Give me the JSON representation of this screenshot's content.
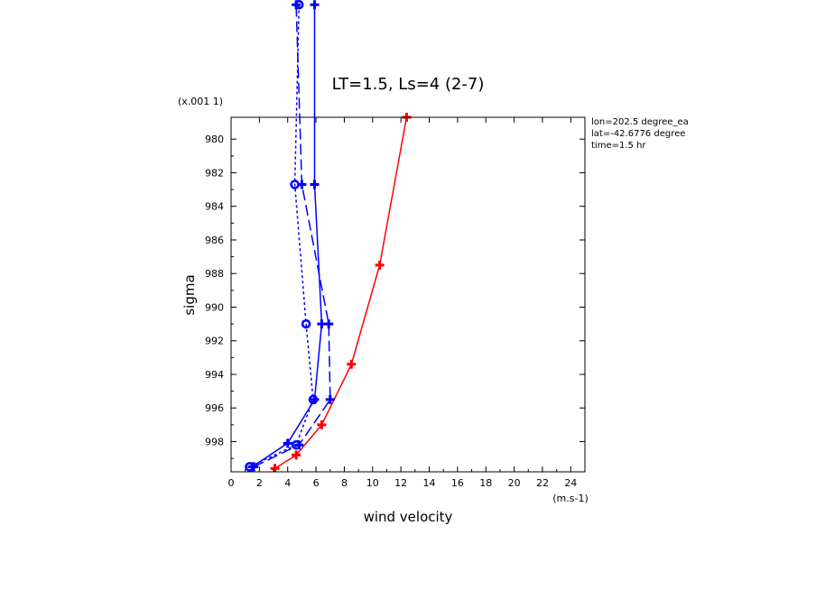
{
  "chart_data": {
    "type": "line",
    "title": "LT=1.5, Ls=4 (2-7)",
    "xlabel": "wind velocity",
    "ylabel": "sigma",
    "x_unit": "(m.s-1)",
    "y_scale_label": "(x.001 1)",
    "xlim": [
      0,
      25
    ],
    "ylim": [
      999.8,
      978.7
    ],
    "x_ticks": [
      "0",
      "2",
      "4",
      "6",
      "8",
      "10",
      "12",
      "14",
      "16",
      "18",
      "20",
      "22",
      "24"
    ],
    "y_ticks": [
      "980",
      "982",
      "984",
      "986",
      "988",
      "990",
      "992",
      "994",
      "996",
      "998"
    ],
    "info": [
      "lon=202.5 degree_ea",
      "lat=-42.6776 degree",
      "time=1.5 hr"
    ],
    "colors": {
      "red": "#ff0000",
      "blue": "#0000ff"
    },
    "series": [
      {
        "color": "#ff0000",
        "style": "solid",
        "marker": "plus",
        "x": [
          3.1,
          4.6,
          6.4,
          8.5,
          10.5,
          12.4
        ],
        "y": [
          999.6,
          998.8,
          997.0,
          993.4,
          987.5,
          978.7
        ]
      },
      {
        "color": "#0000ff",
        "style": "solid",
        "marker": "plus",
        "x": [
          1.5,
          4.0,
          5.9,
          6.4,
          5.9,
          5.9
        ],
        "y": [
          999.5,
          998.1,
          995.5,
          991.0,
          982.7,
          972.0
        ]
      },
      {
        "color": "#0000ff",
        "style": "dashed",
        "marker": "plus",
        "x": [
          1.6,
          4.8,
          7.0,
          6.9,
          5.0,
          4.6
        ],
        "y": [
          999.5,
          998.2,
          995.5,
          991.0,
          982.7,
          972.0
        ]
      },
      {
        "color": "#0000ff",
        "style": "dotted",
        "marker": "circle",
        "x": [
          1.3,
          4.6,
          5.8,
          5.3,
          4.5,
          4.8
        ],
        "y": [
          999.5,
          998.2,
          995.5,
          991.0,
          982.7,
          972.0
        ]
      }
    ]
  }
}
